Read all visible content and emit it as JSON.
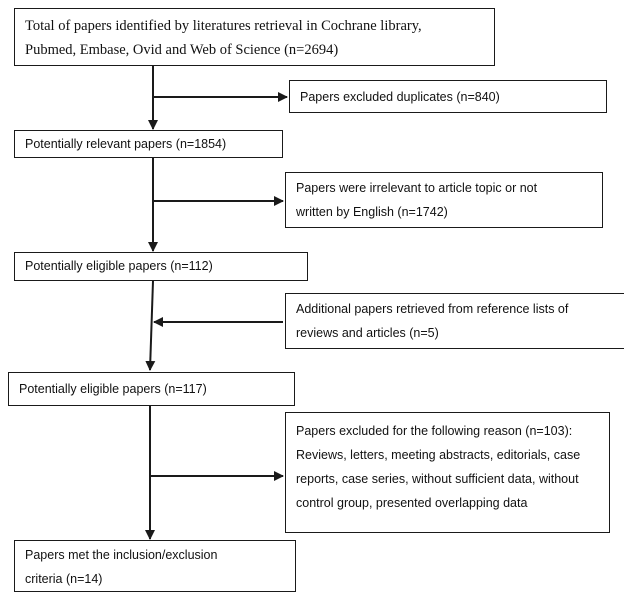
{
  "flowchart": {
    "main_boxes": [
      {
        "lines": [
          "Total of papers identified by literatures retrieval in Cochrane library,",
          "Pubmed, Embase, Ovid and Web of Science (n=2694)"
        ]
      },
      {
        "lines": [
          "Potentially relevant papers (n=1854)"
        ]
      },
      {
        "lines": [
          "Potentially eligible papers (n=112)"
        ]
      },
      {
        "lines": [
          "Potentially eligible papers (n=117)"
        ]
      },
      {
        "lines": [
          "Papers met the inclusion/exclusion",
          "criteria (n=14)"
        ]
      }
    ],
    "side_boxes": [
      {
        "lines": [
          "Papers excluded duplicates (n=840)"
        ]
      },
      {
        "lines": [
          "Papers were irrelevant to article topic or not",
          "written by English (n=1742)"
        ]
      },
      {
        "lines": [
          "Additional papers retrieved from reference lists of",
          "reviews and articles (n=5)"
        ]
      },
      {
        "lines": [
          "Papers excluded for the following reason (n=103):",
          "Reviews, letters, meeting abstracts, editorials, case",
          "reports, case series, without sufficient data, without",
          "control group, presented overlapping data"
        ]
      }
    ]
  }
}
